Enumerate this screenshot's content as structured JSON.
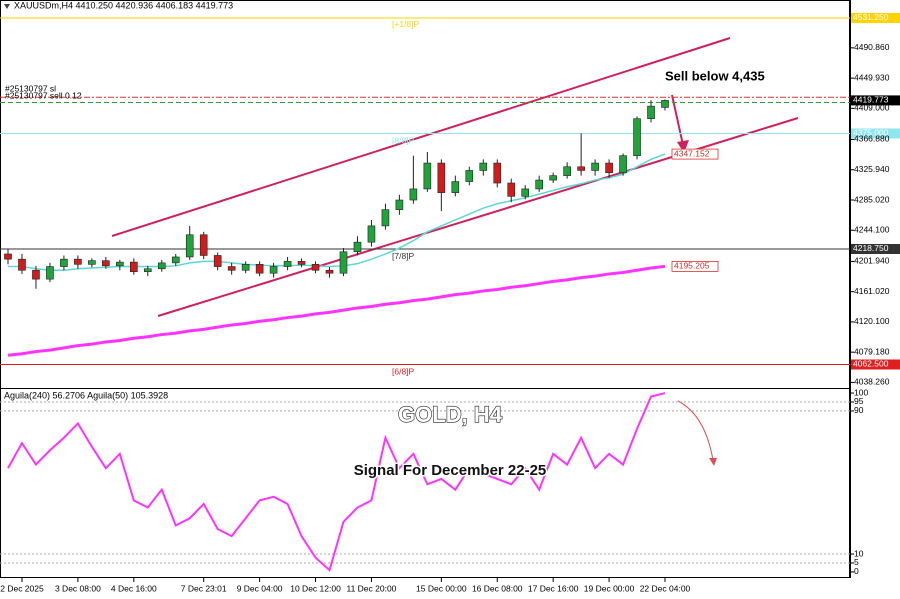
{
  "chart_data": [
    {
      "type": "candlestick",
      "title": "XAUUSDm,H4  4410.250 4420.936 4406.183 4419.773",
      "categories": [
        null,
        "2 Dec 2025",
        null,
        null,
        null,
        "3 Dec 08:00",
        null,
        null,
        null,
        "4 Dec 16:00",
        null,
        null,
        null,
        null,
        "7 Dec 23:01",
        null,
        null,
        null,
        "9 Dec 04:00",
        null,
        null,
        null,
        "10 Dec 12:00",
        null,
        null,
        null,
        "11 Dec 20:00",
        null,
        null,
        null,
        null,
        "15 Dec 00:00",
        null,
        null,
        null,
        "16 Dec 08:00",
        null,
        null,
        null,
        "17 Dec 16:00",
        null,
        null,
        null,
        "19 Dec 00:00",
        null,
        null,
        null,
        "22 Dec 04:00"
      ],
      "open": [
        4212,
        4205,
        4190,
        4178,
        4195,
        4205,
        4198,
        4203,
        4196,
        4201,
        4188,
        4192,
        4200,
        4208,
        4238,
        4210,
        4195,
        4190,
        4198,
        4186,
        4195,
        4202,
        4198,
        4190,
        4186,
        4215,
        4228,
        4250,
        4272,
        4285,
        4300,
        4335,
        4295,
        4310,
        4325,
        4335,
        4308,
        4290,
        4300,
        4312,
        4318,
        4330,
        4325,
        4335,
        4322,
        4345,
        4395,
        4410.25
      ],
      "high": [
        4218,
        4212,
        4196,
        4200,
        4210,
        4210,
        4206,
        4208,
        4204,
        4206,
        4196,
        4204,
        4212,
        4250,
        4242,
        4214,
        4200,
        4202,
        4202,
        4200,
        4208,
        4206,
        4202,
        4194,
        4220,
        4236,
        4258,
        4280,
        4292,
        4345,
        4350,
        4340,
        4318,
        4330,
        4340,
        4340,
        4314,
        4305,
        4318,
        4322,
        4336,
        4375,
        4340,
        4340,
        4348,
        4398,
        4420,
        4420.936
      ],
      "low": [
        4198,
        4185,
        4165,
        4174,
        4190,
        4192,
        4194,
        4192,
        4190,
        4184,
        4182,
        4188,
        4196,
        4204,
        4205,
        4190,
        4184,
        4186,
        4182,
        4180,
        4190,
        4194,
        4186,
        4180,
        4182,
        4210,
        4222,
        4245,
        4265,
        4280,
        4296,
        4270,
        4290,
        4305,
        4318,
        4302,
        4282,
        4286,
        4296,
        4308,
        4314,
        4318,
        4318,
        4315,
        4318,
        4340,
        4390,
        4406.183
      ],
      "close": [
        4205,
        4190,
        4178,
        4195,
        4205,
        4198,
        4203,
        4196,
        4201,
        4188,
        4192,
        4200,
        4208,
        4238,
        4210,
        4195,
        4190,
        4198,
        4186,
        4195,
        4202,
        4198,
        4190,
        4186,
        4215,
        4228,
        4250,
        4272,
        4285,
        4300,
        4335,
        4295,
        4310,
        4325,
        4335,
        4308,
        4290,
        4300,
        4312,
        4318,
        4330,
        4325,
        4335,
        4322,
        4345,
        4395,
        4412,
        4419.773
      ],
      "up_color": "#1fa33a",
      "down_color": "#d01c1c",
      "overlays": [
        {
          "color": "#5fd6d6",
          "last_label": "4347.152",
          "values": [
            4195,
            4195,
            4192,
            4190,
            4190,
            4192,
            4193,
            4194,
            4195,
            4195,
            4195,
            4195,
            4196,
            4200,
            4202,
            4202,
            4200,
            4198,
            4197,
            4196,
            4196,
            4197,
            4196,
            4195,
            4196,
            4199,
            4205,
            4212,
            4220,
            4230,
            4242,
            4250,
            4258,
            4266,
            4274,
            4280,
            4284,
            4288,
            4293,
            4298,
            4303,
            4307,
            4312,
            4315,
            4320,
            4330,
            4340,
            4347.152
          ]
        },
        {
          "color": "#ff33ff",
          "last_label": "4195.205",
          "values": [
            4075,
            4077,
            4080,
            4082,
            4085,
            4088,
            4090,
            4093,
            4095,
            4098,
            4100,
            4103,
            4105,
            4108,
            4110,
            4113,
            4116,
            4118,
            4121,
            4123,
            4126,
            4128,
            4131,
            4133,
            4136,
            4139,
            4141,
            4144,
            4146,
            4149,
            4151,
            4154,
            4157,
            4159,
            4162,
            4164,
            4167,
            4169,
            4172,
            4175,
            4177,
            4180,
            4182,
            4185,
            4187,
            4190,
            4193,
            4195.205
          ]
        }
      ],
      "levels": [
        {
          "name": "[+1/8]P",
          "value": 4531.25,
          "value_label": "4531.250",
          "color": "#ffd400"
        },
        {
          "name": "[8/8]P",
          "value": 4375,
          "value_label": "4375.000",
          "color": "#8ee6ee"
        },
        {
          "name": "[7/8]P",
          "value": 4218.75,
          "value_label": "4218.750",
          "color": "#333333"
        },
        {
          "name": "[6/8]P",
          "value": 4062.5,
          "value_label": "4062.500",
          "color": "#e02020"
        }
      ],
      "orders": [
        {
          "label": "#25130797 sl",
          "value": 4424,
          "color": "#e03030"
        },
        {
          "label": "#25130797 sell 0.12",
          "value": 4417,
          "color": "#2ca02c"
        }
      ],
      "current": {
        "value": 4419.773,
        "label": "4419.773"
      },
      "annotations": [
        "Sell below 4,435"
      ],
      "ylim": [
        4030.7,
        4555.6
      ],
      "yticks": [
        {
          "value": 4490.86,
          "label": "4490.860"
        },
        {
          "value": 4449.93,
          "label": "4449.930"
        },
        {
          "value": 4409,
          "label": "4409.000"
        },
        {
          "value": 4366.88,
          "label": "4366.880"
        },
        {
          "value": 4325.94,
          "label": "4325.940"
        },
        {
          "value": 4285.02,
          "label": "4285.020"
        },
        {
          "value": 4244.1,
          "label": "4244.100"
        },
        {
          "value": 4201.94,
          "label": "4201.940"
        },
        {
          "value": 4161.02,
          "label": "4161.020"
        },
        {
          "value": 4120.1,
          "label": "4120.100"
        },
        {
          "value": 4079.18,
          "label": "4079.180"
        },
        {
          "value": 4038.26,
          "label": "4038.260"
        }
      ]
    },
    {
      "type": "line",
      "title": "Aguila(240) 56.2706  Aguila(50) 105.3928",
      "color": "#ff33ff",
      "values": [
        58,
        72,
        60,
        68,
        75,
        83,
        70,
        58,
        66,
        40,
        36,
        46,
        26,
        30,
        38,
        24,
        20,
        30,
        40,
        42,
        38,
        20,
        8,
        1,
        28,
        36,
        40,
        75,
        58,
        66,
        49,
        52,
        46,
        58,
        55,
        52,
        49,
        58,
        46,
        66,
        60,
        75,
        58,
        66,
        60,
        80,
        98,
        100
      ],
      "annotations": [
        "GOLD, H4",
        "Signal For December 22-25"
      ],
      "ylim": [
        -3.4,
        101.7
      ],
      "yticks": [
        100,
        95,
        90,
        10,
        5,
        0
      ]
    }
  ]
}
